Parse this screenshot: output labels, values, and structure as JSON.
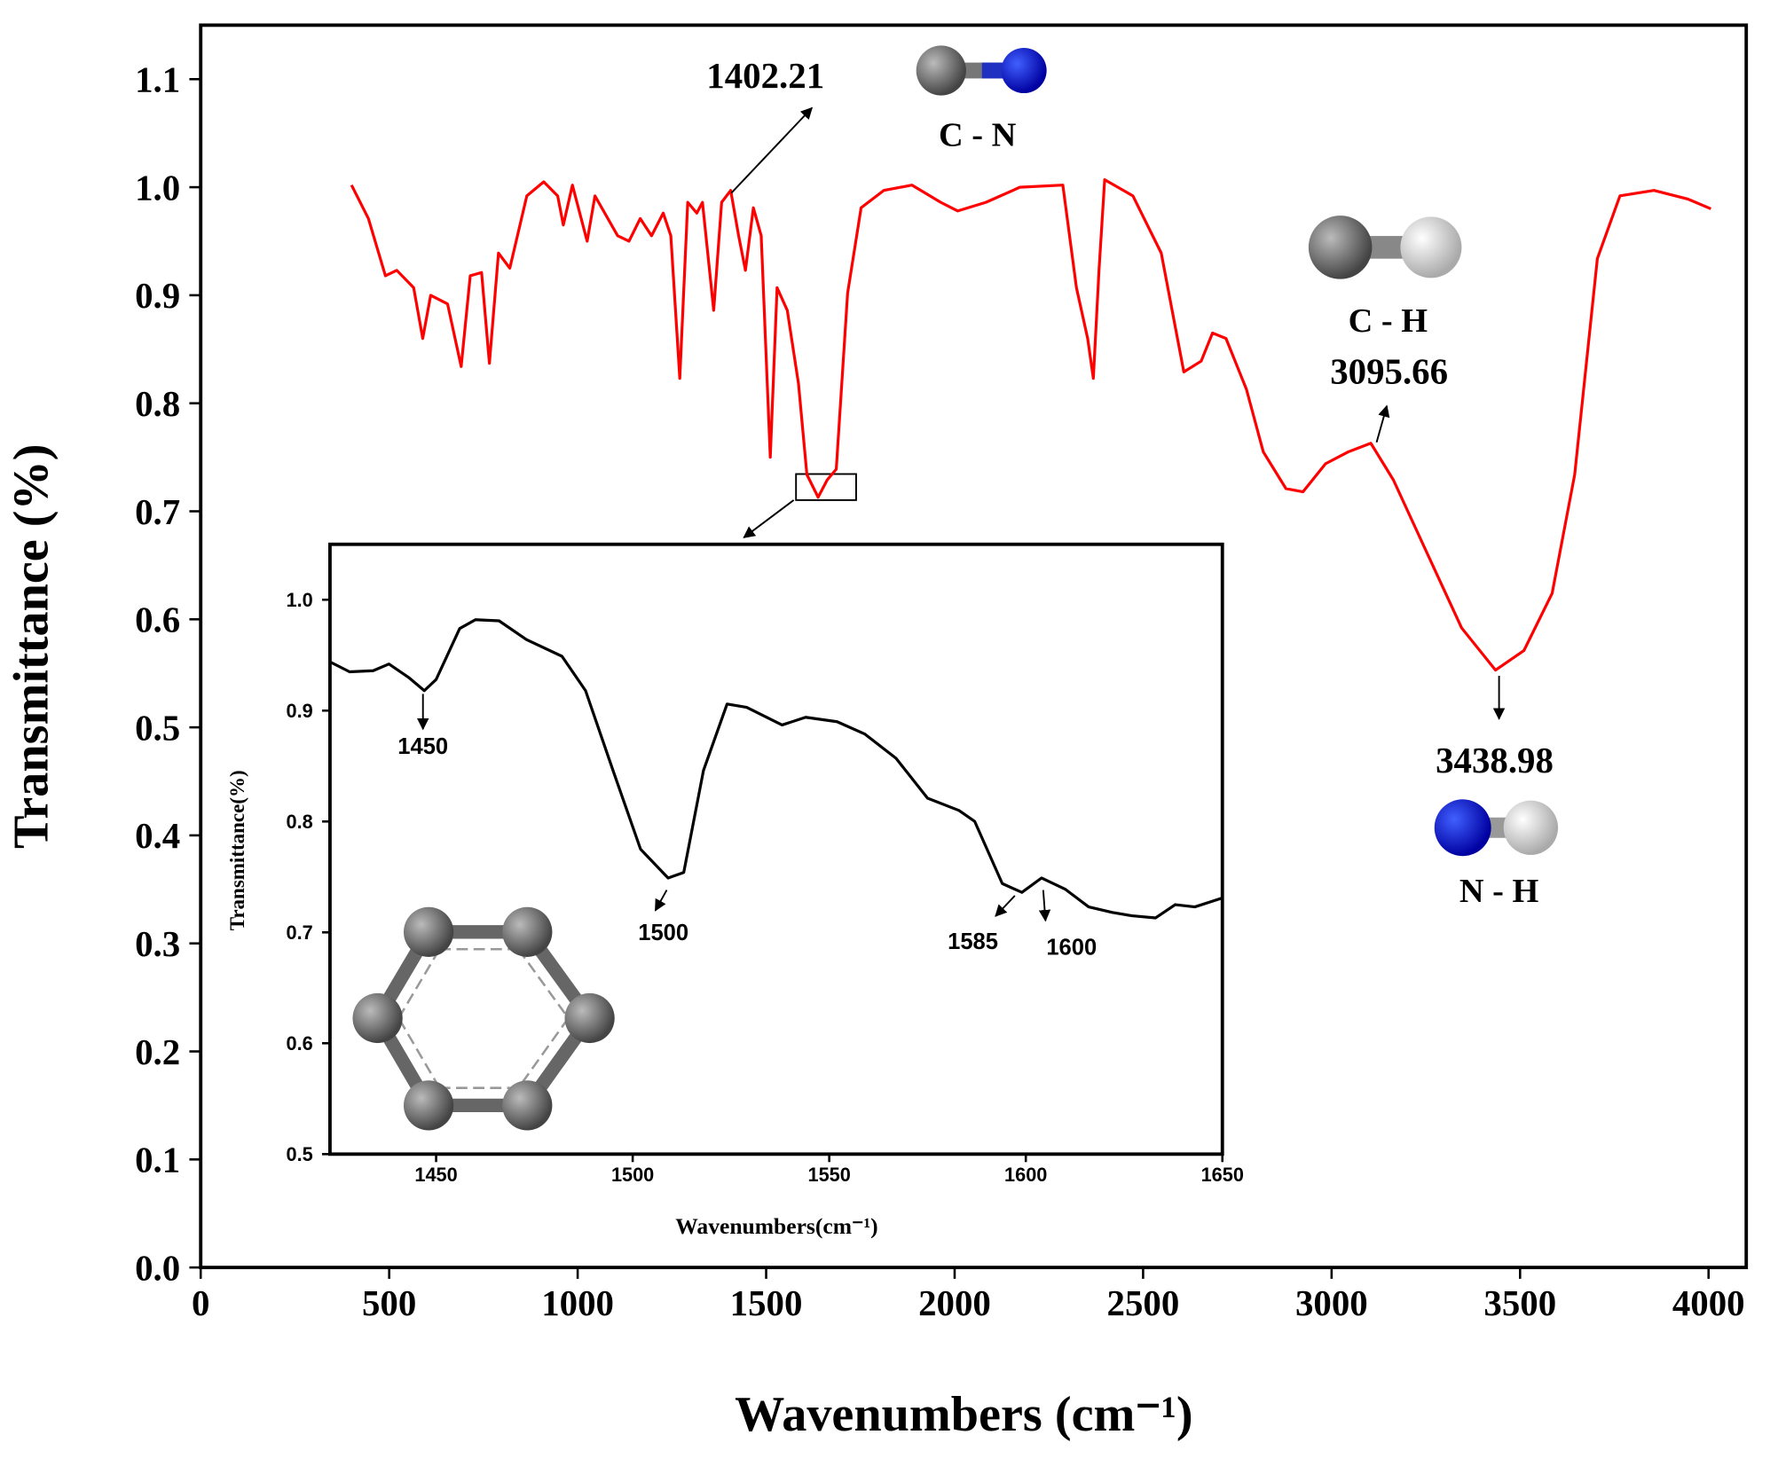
{
  "chart_data": [
    {
      "type": "line",
      "y_label": "Transmittance (%)",
      "x_label": "Wavenumbers (cm⁻¹)",
      "color": "#ff0000",
      "xlim": [
        0,
        4100
      ],
      "ylim": [
        0,
        1.15
      ],
      "xticks": [
        0,
        500,
        1000,
        1500,
        2000,
        2500,
        3000,
        3500,
        4000
      ],
      "yticks": [
        {
          "value": 0,
          "label": "0.0"
        },
        0.1,
        0.2,
        0.3,
        0.4,
        0.5,
        0.6,
        0.7,
        0.8,
        0.9,
        {
          "value": 1,
          "label": "1.0"
        },
        1.1
      ],
      "x": [
        400,
        445,
        490,
        520,
        565,
        589,
        610,
        655,
        691,
        715,
        745,
        766,
        790,
        820,
        865,
        910,
        947,
        962,
        986,
        1025,
        1046,
        1106,
        1136,
        1166,
        1196,
        1227,
        1247,
        1271,
        1292,
        1316,
        1331,
        1361,
        1382,
        1406,
        1427,
        1445,
        1466,
        1487,
        1511,
        1529,
        1556,
        1586,
        1608,
        1638,
        1662,
        1686,
        1716,
        1752,
        1812,
        1887,
        1963,
        2008,
        2083,
        2173,
        2287,
        2323,
        2353,
        2368,
        2383,
        2398,
        2473,
        2548,
        2608,
        2654,
        2684,
        2720,
        2774,
        2819,
        2879,
        2924,
        2984,
        3044,
        3104,
        3164,
        3255,
        3345,
        3435,
        3510,
        3585,
        3645,
        3705,
        3765,
        3855,
        3945,
        4006
      ],
      "values": [
        1.002,
        0.971,
        0.918,
        0.923,
        0.907,
        0.86,
        0.9,
        0.892,
        0.834,
        0.918,
        0.921,
        0.837,
        0.939,
        0.925,
        0.992,
        1.005,
        0.992,
        0.965,
        1.002,
        0.95,
        0.992,
        0.955,
        0.95,
        0.971,
        0.955,
        0.976,
        0.955,
        0.823,
        0.986,
        0.976,
        0.986,
        0.886,
        0.986,
        0.997,
        0.955,
        0.923,
        0.981,
        0.955,
        0.75,
        0.907,
        0.886,
        0.818,
        0.734,
        0.713,
        0.729,
        0.739,
        0.902,
        0.981,
        0.997,
        1.002,
        0.986,
        0.978,
        0.986,
        1.0,
        1.002,
        0.907,
        0.86,
        0.823,
        0.923,
        1.007,
        0.992,
        0.939,
        0.829,
        0.839,
        0.865,
        0.86,
        0.813,
        0.755,
        0.721,
        0.718,
        0.744,
        0.755,
        0.763,
        0.729,
        0.66,
        0.592,
        0.553,
        0.571,
        0.624,
        0.734,
        0.934,
        0.992,
        0.997,
        0.989,
        0.98
      ],
      "annotations": [
        "1402.21",
        "C - N",
        "C - H",
        "3095.66",
        "3438.98",
        "N - H"
      ]
    },
    {
      "type": "line",
      "y_label": "Transmittance(%)",
      "x_label": "Wavenumbers(cm⁻¹)",
      "color": "#000000",
      "xlim": [
        1423,
        1650
      ],
      "ylim": [
        0.5,
        1.05
      ],
      "xticks": [
        1450,
        1500,
        1550,
        1600,
        1650
      ],
      "yticks": [
        0.5,
        0.6,
        0.7,
        0.8,
        0.9,
        {
          "value": 1,
          "label": "1.0"
        }
      ],
      "x": [
        1423,
        1428,
        1434,
        1438,
        1443,
        1447,
        1450,
        1456,
        1460,
        1466,
        1473,
        1482,
        1488,
        1495,
        1502,
        1509,
        1513,
        1518,
        1524,
        1529,
        1538,
        1544,
        1552,
        1559,
        1567,
        1575,
        1583,
        1587,
        1594,
        1599,
        1604,
        1610,
        1616,
        1622,
        1627,
        1633,
        1638,
        1643,
        1650
      ],
      "values": [
        0.944,
        0.935,
        0.936,
        0.942,
        0.93,
        0.918,
        0.928,
        0.974,
        0.982,
        0.981,
        0.964,
        0.949,
        0.918,
        0.846,
        0.775,
        0.749,
        0.754,
        0.846,
        0.906,
        0.903,
        0.887,
        0.894,
        0.89,
        0.879,
        0.857,
        0.821,
        0.81,
        0.8,
        0.744,
        0.736,
        0.749,
        0.739,
        0.723,
        0.718,
        0.715,
        0.713,
        0.725,
        0.723,
        0.731
      ],
      "annotations": [
        "1450",
        "1500",
        "1585",
        "1600"
      ]
    }
  ]
}
